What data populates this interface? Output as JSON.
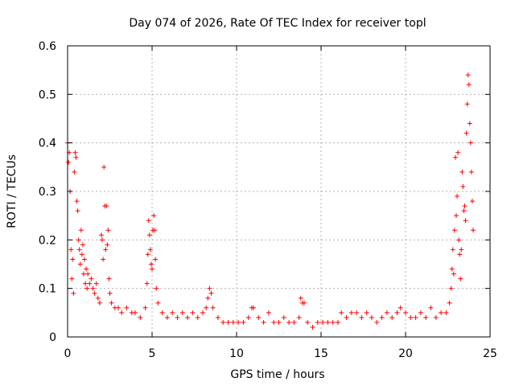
{
  "chart_data": {
    "type": "scatter",
    "title": "Day 074 of 2026, Rate Of TEC Index for receiver topl",
    "xlabel": "GPS time / hours",
    "ylabel": "ROTI / TECUs",
    "xlim": [
      0,
      25
    ],
    "ylim": [
      0,
      0.6
    ],
    "x_ticks": [
      "0",
      "5",
      "10",
      "15",
      "20",
      "25"
    ],
    "y_ticks": [
      "0",
      "0.1",
      "0.2",
      "0.3",
      "0.4",
      "0.5",
      "0.6"
    ],
    "grid": true,
    "marker": "plus",
    "color": "#ff0000",
    "points": [
      [
        0.0,
        0.4
      ],
      [
        0.05,
        0.36
      ],
      [
        0.1,
        0.38
      ],
      [
        0.15,
        0.3
      ],
      [
        0.2,
        0.18
      ],
      [
        0.25,
        0.12
      ],
      [
        0.3,
        0.16
      ],
      [
        0.35,
        0.09
      ],
      [
        0.4,
        0.34
      ],
      [
        0.45,
        0.38
      ],
      [
        0.5,
        0.37
      ],
      [
        0.55,
        0.28
      ],
      [
        0.6,
        0.26
      ],
      [
        0.65,
        0.2
      ],
      [
        0.7,
        0.18
      ],
      [
        0.75,
        0.15
      ],
      [
        0.8,
        0.22
      ],
      [
        0.85,
        0.17
      ],
      [
        0.9,
        0.19
      ],
      [
        0.95,
        0.13
      ],
      [
        1.0,
        0.16
      ],
      [
        1.05,
        0.11
      ],
      [
        1.1,
        0.14
      ],
      [
        1.15,
        0.1
      ],
      [
        1.2,
        0.13
      ],
      [
        1.3,
        0.11
      ],
      [
        1.4,
        0.12
      ],
      [
        1.5,
        0.1
      ],
      [
        1.6,
        0.09
      ],
      [
        1.7,
        0.11
      ],
      [
        1.8,
        0.08
      ],
      [
        1.9,
        0.07
      ],
      [
        2.0,
        0.21
      ],
      [
        2.05,
        0.2
      ],
      [
        2.1,
        0.16
      ],
      [
        2.15,
        0.35
      ],
      [
        2.2,
        0.27
      ],
      [
        2.25,
        0.18
      ],
      [
        2.3,
        0.27
      ],
      [
        2.35,
        0.19
      ],
      [
        2.4,
        0.22
      ],
      [
        2.45,
        0.12
      ],
      [
        2.5,
        0.09
      ],
      [
        2.6,
        0.07
      ],
      [
        2.8,
        0.06
      ],
      [
        3.0,
        0.06
      ],
      [
        3.2,
        0.05
      ],
      [
        3.5,
        0.06
      ],
      [
        3.8,
        0.05
      ],
      [
        4.0,
        0.05
      ],
      [
        4.3,
        0.04
      ],
      [
        4.6,
        0.06
      ],
      [
        4.7,
        0.11
      ],
      [
        4.75,
        0.17
      ],
      [
        4.8,
        0.24
      ],
      [
        4.85,
        0.21
      ],
      [
        4.9,
        0.18
      ],
      [
        4.95,
        0.15
      ],
      [
        5.0,
        0.14
      ],
      [
        5.05,
        0.22
      ],
      [
        5.1,
        0.25
      ],
      [
        5.15,
        0.22
      ],
      [
        5.2,
        0.16
      ],
      [
        5.25,
        0.1
      ],
      [
        5.35,
        0.07
      ],
      [
        5.6,
        0.05
      ],
      [
        5.9,
        0.04
      ],
      [
        6.2,
        0.05
      ],
      [
        6.5,
        0.04
      ],
      [
        6.8,
        0.05
      ],
      [
        7.1,
        0.04
      ],
      [
        7.4,
        0.05
      ],
      [
        7.7,
        0.04
      ],
      [
        8.0,
        0.05
      ],
      [
        8.2,
        0.06
      ],
      [
        8.3,
        0.08
      ],
      [
        8.4,
        0.1
      ],
      [
        8.5,
        0.09
      ],
      [
        8.6,
        0.06
      ],
      [
        8.9,
        0.04
      ],
      [
        9.2,
        0.03
      ],
      [
        9.5,
        0.03
      ],
      [
        9.8,
        0.03
      ],
      [
        10.1,
        0.03
      ],
      [
        10.4,
        0.03
      ],
      [
        10.7,
        0.04
      ],
      [
        10.9,
        0.06
      ],
      [
        11.0,
        0.06
      ],
      [
        11.3,
        0.04
      ],
      [
        11.6,
        0.03
      ],
      [
        11.9,
        0.05
      ],
      [
        12.2,
        0.03
      ],
      [
        12.5,
        0.03
      ],
      [
        12.8,
        0.04
      ],
      [
        13.1,
        0.03
      ],
      [
        13.4,
        0.03
      ],
      [
        13.7,
        0.04
      ],
      [
        13.8,
        0.08
      ],
      [
        13.9,
        0.07
      ],
      [
        14.0,
        0.07
      ],
      [
        14.2,
        0.03
      ],
      [
        14.5,
        0.02
      ],
      [
        14.8,
        0.03
      ],
      [
        15.1,
        0.03
      ],
      [
        15.4,
        0.03
      ],
      [
        15.7,
        0.03
      ],
      [
        16.0,
        0.03
      ],
      [
        16.2,
        0.05
      ],
      [
        16.5,
        0.04
      ],
      [
        16.8,
        0.05
      ],
      [
        17.1,
        0.05
      ],
      [
        17.4,
        0.04
      ],
      [
        17.7,
        0.05
      ],
      [
        18.0,
        0.04
      ],
      [
        18.3,
        0.03
      ],
      [
        18.6,
        0.04
      ],
      [
        18.9,
        0.05
      ],
      [
        19.2,
        0.04
      ],
      [
        19.5,
        0.05
      ],
      [
        19.7,
        0.06
      ],
      [
        20.0,
        0.05
      ],
      [
        20.3,
        0.04
      ],
      [
        20.6,
        0.04
      ],
      [
        20.9,
        0.05
      ],
      [
        21.2,
        0.04
      ],
      [
        21.5,
        0.06
      ],
      [
        21.8,
        0.04
      ],
      [
        22.1,
        0.05
      ],
      [
        22.4,
        0.05
      ],
      [
        22.6,
        0.07
      ],
      [
        22.7,
        0.1
      ],
      [
        22.75,
        0.14
      ],
      [
        22.8,
        0.18
      ],
      [
        22.85,
        0.13
      ],
      [
        22.9,
        0.22
      ],
      [
        22.95,
        0.37
      ],
      [
        23.0,
        0.25
      ],
      [
        23.05,
        0.29
      ],
      [
        23.1,
        0.38
      ],
      [
        23.15,
        0.2
      ],
      [
        23.2,
        0.17
      ],
      [
        23.25,
        0.12
      ],
      [
        23.3,
        0.18
      ],
      [
        23.35,
        0.34
      ],
      [
        23.4,
        0.31
      ],
      [
        23.45,
        0.26
      ],
      [
        23.5,
        0.27
      ],
      [
        23.55,
        0.24
      ],
      [
        23.6,
        0.42
      ],
      [
        23.65,
        0.48
      ],
      [
        23.7,
        0.54
      ],
      [
        23.75,
        0.52
      ],
      [
        23.8,
        0.44
      ],
      [
        23.85,
        0.4
      ],
      [
        23.9,
        0.34
      ],
      [
        23.95,
        0.28
      ],
      [
        24.0,
        0.22
      ]
    ]
  }
}
